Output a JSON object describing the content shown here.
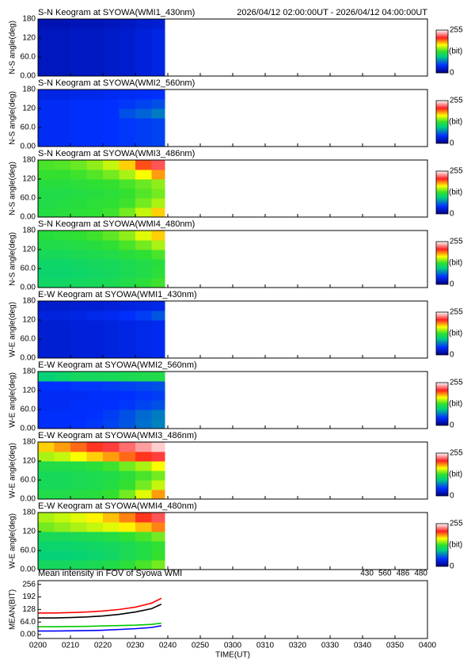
{
  "chart_data": [
    {
      "type": "heatmap",
      "title": "S-N Keogram at SYOWA(WMI1_430nm)",
      "subtitle": "2026/04/12 02:00:00UT - 2026/04/12 04:00:00UT",
      "ylabel": "N-S angle(deg)",
      "xlim": [
        120,
        240
      ],
      "xticks": [
        120,
        130,
        140,
        150,
        160,
        170,
        180,
        190,
        200,
        210,
        220,
        230,
        240
      ],
      "ylim": [
        0,
        180
      ],
      "yticks": [
        {
          "value": 0,
          "label": "0.00"
        },
        {
          "value": 60,
          "label": "60.0"
        },
        120,
        180
      ],
      "x": [
        120,
        125,
        130,
        135,
        140,
        145,
        150,
        155,
        159
      ],
      "y": [
        0,
        30,
        60,
        90,
        120,
        150,
        180
      ],
      "values": [
        [
          22,
          22,
          24,
          24,
          26,
          28,
          32,
          36
        ],
        [
          22,
          22,
          24,
          24,
          26,
          28,
          32,
          36
        ],
        [
          22,
          22,
          24,
          24,
          26,
          28,
          32,
          36
        ],
        [
          22,
          22,
          24,
          24,
          26,
          28,
          32,
          36
        ],
        [
          22,
          22,
          24,
          24,
          26,
          28,
          32,
          36
        ],
        [
          18,
          18,
          20,
          20,
          22,
          24,
          28,
          30
        ]
      ],
      "zlim": [
        0,
        255
      ],
      "zticks": [
        0,
        255
      ],
      "zlabel": "(bit)"
    },
    {
      "type": "heatmap",
      "title": "S-N Keogram at SYOWA(WMI2_560nm)",
      "ylabel": "N-S angle(deg)",
      "xlim": [
        120,
        240
      ],
      "xticks": [
        120,
        130,
        140,
        150,
        160,
        170,
        180,
        190,
        200,
        210,
        220,
        230,
        240
      ],
      "ylim": [
        0,
        180
      ],
      "yticks": [
        {
          "value": 0,
          "label": "0.00"
        },
        {
          "value": 60,
          "label": "60.0"
        },
        120,
        180
      ],
      "x": [
        120,
        125,
        130,
        135,
        140,
        145,
        150,
        155,
        159
      ],
      "y": [
        0,
        30,
        60,
        90,
        120,
        150,
        180
      ],
      "values": [
        [
          42,
          42,
          44,
          44,
          46,
          48,
          50,
          52
        ],
        [
          42,
          42,
          44,
          44,
          46,
          48,
          50,
          52
        ],
        [
          42,
          42,
          44,
          44,
          46,
          48,
          50,
          52
        ],
        [
          42,
          42,
          44,
          44,
          46,
          56,
          62,
          70
        ],
        [
          42,
          42,
          44,
          44,
          46,
          48,
          52,
          56
        ],
        [
          36,
          36,
          38,
          38,
          40,
          42,
          44,
          46
        ]
      ],
      "zlim": [
        0,
        255
      ],
      "zticks": [
        0,
        255
      ],
      "zlabel": "(bit)"
    },
    {
      "type": "heatmap",
      "title": "S-N Keogram at SYOWA(WMI3_486nm)",
      "ylabel": "N-S angle(deg)",
      "xlim": [
        120,
        240
      ],
      "xticks": [
        120,
        130,
        140,
        150,
        160,
        170,
        180,
        190,
        200,
        210,
        220,
        230,
        240
      ],
      "ylim": [
        0,
        180
      ],
      "yticks": [
        {
          "value": 0,
          "label": "0.00"
        },
        {
          "value": 60,
          "label": "60.0"
        },
        120,
        180
      ],
      "x": [
        120,
        125,
        130,
        135,
        140,
        145,
        150,
        155,
        159
      ],
      "y": [
        0,
        30,
        60,
        90,
        120,
        150,
        180
      ],
      "values": [
        [
          120,
          122,
          124,
          126,
          130,
          140,
          155,
          175
        ],
        [
          118,
          120,
          122,
          124,
          126,
          130,
          140,
          150
        ],
        [
          118,
          118,
          120,
          122,
          124,
          128,
          134,
          140
        ],
        [
          122,
          122,
          124,
          126,
          128,
          132,
          138,
          145
        ],
        [
          128,
          128,
          130,
          134,
          140,
          150,
          165,
          185
        ],
        [
          132,
          134,
          138,
          145,
          155,
          175,
          200,
          220
        ]
      ],
      "zlim": [
        0,
        255
      ],
      "zticks": [
        0,
        255
      ],
      "zlabel": "(bit)"
    },
    {
      "type": "heatmap",
      "title": "S-N Keogram at SYOWA(WMI4_480nm)",
      "ylabel": "N-S angle(deg)",
      "xlim": [
        120,
        240
      ],
      "xticks": [
        120,
        130,
        140,
        150,
        160,
        170,
        180,
        190,
        200,
        210,
        220,
        230,
        240
      ],
      "ylim": [
        0,
        180
      ],
      "yticks": [
        {
          "value": 0,
          "label": "0.00"
        },
        {
          "value": 60,
          "label": "60.0"
        },
        120,
        180
      ],
      "x": [
        120,
        125,
        130,
        135,
        140,
        145,
        150,
        155,
        159
      ],
      "y": [
        0,
        30,
        60,
        90,
        120,
        150,
        180
      ],
      "values": [
        [
          108,
          108,
          110,
          112,
          114,
          118,
          124,
          130
        ],
        [
          104,
          104,
          106,
          108,
          110,
          114,
          118,
          124
        ],
        [
          106,
          106,
          108,
          110,
          112,
          114,
          118,
          122
        ],
        [
          112,
          112,
          114,
          116,
          118,
          122,
          126,
          132
        ],
        [
          118,
          118,
          120,
          122,
          126,
          132,
          140,
          150
        ],
        [
          122,
          124,
          126,
          130,
          136,
          145,
          160,
          175
        ]
      ],
      "zlim": [
        0,
        255
      ],
      "zticks": [
        0,
        255
      ],
      "zlabel": "(bit)"
    },
    {
      "type": "heatmap",
      "title": "E-W Keogram at SYOWA(WMI1_430nm)",
      "ylabel": "W-E angle(deg)",
      "xlim": [
        120,
        240
      ],
      "xticks": [
        120,
        130,
        140,
        150,
        160,
        170,
        180,
        190,
        200,
        210,
        220,
        230,
        240
      ],
      "ylim": [
        0,
        180
      ],
      "yticks": [
        {
          "value": 0,
          "label": "0.00"
        },
        {
          "value": 60,
          "label": "60.0"
        },
        120,
        180
      ],
      "x": [
        120,
        125,
        130,
        135,
        140,
        145,
        150,
        155,
        159
      ],
      "y": [
        0,
        30,
        60,
        90,
        120,
        150,
        180
      ],
      "values": [
        [
          30,
          30,
          32,
          32,
          34,
          36,
          38,
          40
        ],
        [
          30,
          30,
          32,
          32,
          34,
          36,
          38,
          40
        ],
        [
          30,
          30,
          32,
          32,
          34,
          36,
          38,
          40
        ],
        [
          30,
          30,
          32,
          32,
          34,
          36,
          38,
          40
        ],
        [
          34,
          34,
          36,
          38,
          40,
          44,
          50,
          58
        ],
        [
          28,
          28,
          30,
          30,
          32,
          34,
          36,
          38
        ]
      ],
      "zlim": [
        0,
        255
      ],
      "zticks": [
        0,
        255
      ],
      "zlabel": "(bit)"
    },
    {
      "type": "heatmap",
      "title": "E-W Keogram at SYOWA(WMI2_560nm)",
      "ylabel": "W-E angle(deg)",
      "xlim": [
        120,
        240
      ],
      "xticks": [
        120,
        130,
        140,
        150,
        160,
        170,
        180,
        190,
        200,
        210,
        220,
        230,
        240
      ],
      "ylim": [
        0,
        180
      ],
      "yticks": [
        {
          "value": 0,
          "label": "0.00"
        },
        {
          "value": 60,
          "label": "60.0"
        },
        120,
        180
      ],
      "x": [
        120,
        125,
        130,
        135,
        140,
        145,
        150,
        155,
        159
      ],
      "y": [
        0,
        30,
        60,
        90,
        120,
        150,
        180
      ],
      "values": [
        [
          44,
          44,
          46,
          48,
          52,
          58,
          66,
          72
        ],
        [
          44,
          44,
          44,
          46,
          50,
          56,
          64,
          70
        ],
        [
          42,
          42,
          44,
          44,
          46,
          48,
          52,
          56
        ],
        [
          42,
          42,
          42,
          44,
          44,
          46,
          48,
          50
        ],
        [
          46,
          46,
          48,
          48,
          50,
          52,
          54,
          56
        ],
        [
          100,
          105,
          110,
          110,
          112,
          114,
          116,
          118
        ]
      ],
      "zlim": [
        0,
        255
      ],
      "zticks": [
        0,
        255
      ],
      "zlabel": "(bit)"
    },
    {
      "type": "heatmap",
      "title": "E-W Keogram at SYOWA(WMI3_486nm)",
      "ylabel": "W-E angle(deg)",
      "xlim": [
        120,
        240
      ],
      "xticks": [
        120,
        130,
        140,
        150,
        160,
        170,
        180,
        190,
        200,
        210,
        220,
        230,
        240
      ],
      "ylim": [
        0,
        180
      ],
      "yticks": [
        {
          "value": 0,
          "label": "0.00"
        },
        {
          "value": 60,
          "label": "60.0"
        },
        120,
        180
      ],
      "x": [
        120,
        125,
        130,
        135,
        140,
        145,
        150,
        155,
        159
      ],
      "y": [
        0,
        30,
        60,
        90,
        120,
        150,
        180
      ],
      "values": [
        [
          118,
          118,
          120,
          122,
          128,
          140,
          160,
          185
        ],
        [
          112,
          112,
          114,
          116,
          120,
          128,
          140,
          155
        ],
        [
          112,
          112,
          114,
          116,
          118,
          124,
          132,
          140
        ],
        [
          118,
          118,
          120,
          124,
          130,
          140,
          150,
          165
        ],
        [
          150,
          155,
          165,
          175,
          185,
          195,
          205,
          215
        ],
        [
          175,
          185,
          195,
          205,
          215,
          225,
          235,
          245
        ]
      ],
      "zlim": [
        0,
        255
      ],
      "zticks": [
        0,
        255
      ],
      "zlabel": "(bit)"
    },
    {
      "type": "heatmap",
      "title": "E-W Keogram at SYOWA(WMI4_480nm)",
      "ylabel": "W-E angle(deg)",
      "xlim": [
        120,
        240
      ],
      "xticks": [
        120,
        130,
        140,
        150,
        160,
        170,
        180,
        190,
        200,
        210,
        220,
        230,
        240
      ],
      "ylim": [
        0,
        180
      ],
      "yticks": [
        {
          "value": 0,
          "label": "0.00"
        },
        {
          "value": 60,
          "label": "60.0"
        },
        120,
        180
      ],
      "x": [
        120,
        125,
        130,
        135,
        140,
        145,
        150,
        155,
        159
      ],
      "y": [
        0,
        30,
        60,
        90,
        120,
        150,
        180
      ],
      "values": [
        [
          110,
          110,
          112,
          114,
          118,
          124,
          132,
          140
        ],
        [
          100,
          100,
          102,
          104,
          108,
          114,
          120,
          128
        ],
        [
          104,
          104,
          106,
          108,
          110,
          114,
          120,
          126
        ],
        [
          112,
          112,
          114,
          116,
          120,
          126,
          132,
          140
        ],
        [
          140,
          145,
          150,
          155,
          160,
          168,
          178,
          190
        ],
        [
          150,
          155,
          160,
          168,
          178,
          190,
          205,
          220
        ]
      ],
      "zlim": [
        0,
        255
      ],
      "zticks": [
        0,
        255
      ],
      "zlabel": "(bit)"
    },
    {
      "type": "line",
      "title": "Mean intensity in FOV of Syowa WMI",
      "xlabel": "TIME(UT)",
      "ylabel": "MEAN(BIT)",
      "xlim": [
        120,
        240
      ],
      "xticks": [
        {
          "value": 120,
          "label": "0200"
        },
        {
          "value": 130,
          "label": "0210"
        },
        {
          "value": 140,
          "label": "0220"
        },
        {
          "value": 150,
          "label": "0230"
        },
        {
          "value": 160,
          "label": "0240"
        },
        {
          "value": 170,
          "label": "0250"
        },
        {
          "value": 180,
          "label": "0300"
        },
        {
          "value": 190,
          "label": "0310"
        },
        {
          "value": 200,
          "label": "0320"
        },
        {
          "value": 210,
          "label": "0330"
        },
        {
          "value": 220,
          "label": "0340"
        },
        {
          "value": 230,
          "label": "0350"
        },
        {
          "value": 240,
          "label": "0400"
        }
      ],
      "ylim": [
        -20,
        275
      ],
      "yticks": [
        {
          "value": 0,
          "label": "0.00"
        },
        {
          "value": 64,
          "label": "64.0"
        },
        128,
        192,
        256
      ],
      "x": [
        120,
        125,
        130,
        135,
        140,
        145,
        150,
        155,
        158
      ],
      "series": [
        {
          "name": "430",
          "color": "#0000ff",
          "values": [
            18,
            18,
            19,
            20,
            22,
            26,
            30,
            36,
            45
          ]
        },
        {
          "name": "560",
          "color": "#00c800",
          "values": [
            40,
            40,
            41,
            42,
            44,
            46,
            48,
            52,
            58
          ]
        },
        {
          "name": "486",
          "color": "#ff0000",
          "values": [
            110,
            110,
            112,
            115,
            120,
            128,
            140,
            160,
            185
          ]
        },
        {
          "name": "480",
          "color": "#000000",
          "values": [
            85,
            85,
            87,
            90,
            95,
            103,
            115,
            132,
            155
          ]
        }
      ]
    }
  ]
}
